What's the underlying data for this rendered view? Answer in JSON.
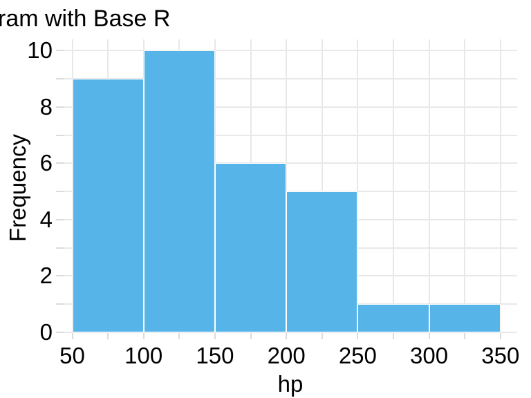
{
  "chart_data": {
    "type": "histogram",
    "title": "ram with Base R",
    "title_note": "clipped at left edge of image",
    "xlabel": "hp",
    "ylabel": "Frequency",
    "bin_edges": [
      50,
      100,
      150,
      200,
      250,
      300,
      350
    ],
    "counts": [
      9,
      10,
      6,
      5,
      1,
      1
    ],
    "x_major_ticks": [
      50,
      100,
      150,
      200,
      250,
      300,
      350
    ],
    "x_tick_labels": [
      "50",
      "100",
      "150",
      "200",
      "250",
      "300",
      "350"
    ],
    "x_minor_tick_step": 25,
    "y_major_ticks": [
      0,
      2,
      4,
      6,
      8,
      10
    ],
    "y_tick_labels": [
      "0",
      "2",
      "4",
      "6",
      "8",
      "10"
    ],
    "y_minor_tick_step": 1,
    "xlim": [
      50,
      350
    ],
    "ylim": [
      0,
      10
    ],
    "grid": true,
    "legend": null,
    "colors": {
      "bar_fill": "#56B4E9",
      "bar_border": "#FFFFFF",
      "gridline": "#E8E8E8",
      "tick": "#DBDBDB",
      "text": "#000000",
      "background": "#FFFFFF"
    }
  }
}
